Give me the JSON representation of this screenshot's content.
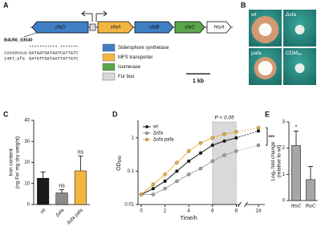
{
  "panel_a": {
    "label": "A",
    "genes": [
      {
        "name": "sfaD",
        "color": "#3f7fc4"
      },
      {
        "name": "sfaA",
        "color": "#f2b640"
      },
      {
        "name": "sfaB",
        "color": "#3f7fc4"
      },
      {
        "name": "sfaC",
        "color": "#5aa64a"
      },
      {
        "name": "htsA",
        "color": "#ffffff"
      }
    ],
    "fur_box_color": "#d9d9d9",
    "locus": "B4U56_03540",
    "alignment": {
      "stars": "*********** *******",
      "rows": [
        [
          "consensus",
          "GATAATGATAATCATTATC"
        ],
        [
          "1457_sfa",
          "GATATTGATAATTATTATC"
        ]
      ]
    },
    "legend": [
      {
        "name": "Siderophore synthetase",
        "color": "#3f7fc4"
      },
      {
        "name": "MFS transporter",
        "color": "#f2b640"
      },
      {
        "name": "Isomerase",
        "color": "#5aa64a"
      },
      {
        "name": "Fur box",
        "color": "#d9d9d9"
      }
    ],
    "scale": "1 kb"
  },
  "panel_b": {
    "label": "B",
    "plates": [
      {
        "text": "wt"
      },
      {
        "text": "Δsfa"
      },
      {
        "text": "pafa"
      },
      {
        "text": "CDM",
        "sub": "Fe"
      }
    ]
  },
  "chart_data": [
    {
      "type": "bar",
      "label": "C",
      "y_label": [
        "Iron content",
        "(ng Fe/ mg dry weight)"
      ],
      "categories": [
        "wt",
        "Δsfa",
        "Δsfa pafa"
      ],
      "values": [
        12.5,
        5.5,
        16
      ],
      "errors": [
        3,
        1.5,
        7
      ],
      "colors": [
        "#1a1a1a",
        "#8c8c8c",
        "#f2b640"
      ],
      "annotations": [
        null,
        "ns",
        "ns"
      ],
      "ylim": [
        0,
        40
      ],
      "yticks": [
        0,
        10,
        20,
        30,
        40
      ]
    },
    {
      "type": "line",
      "label": "D",
      "y_label": {
        "text": "OD",
        "sub": "540"
      },
      "x_label": "Time/h",
      "x": [
        0,
        1,
        2,
        3,
        4,
        5,
        6,
        7,
        8,
        24
      ],
      "series": [
        {
          "name": "wt",
          "color": "#1a1a1a",
          "values": [
            0.02,
            0.03,
            0.05,
            0.1,
            0.2,
            0.35,
            0.6,
            0.8,
            1.0,
            1.6
          ]
        },
        {
          "name": "Δsfa",
          "color": "#a6a6a6",
          "values": [
            0.02,
            0.02,
            0.03,
            0.05,
            0.08,
            0.12,
            0.2,
            0.3,
            0.4,
            0.6
          ]
        },
        {
          "name": "Δsfa pafa",
          "color": "#f2b640",
          "values": [
            0.02,
            0.04,
            0.08,
            0.18,
            0.4,
            0.7,
            1.0,
            1.3,
            1.5,
            2.0
          ]
        }
      ],
      "log_y": true,
      "ylim": [
        0.01,
        3
      ],
      "yticks": [
        0.01,
        0.1,
        1
      ],
      "xlim": [
        0,
        24
      ],
      "xticks": [
        0,
        2,
        4,
        6,
        8,
        24
      ],
      "axis_break": true,
      "shade": [
        6,
        8
      ],
      "shade_label": "P < 0.05",
      "end_label": "***",
      "legend": "upper left"
    },
    {
      "type": "bar",
      "label": "E",
      "y_label": [
        "Log",
        "2",
        " fold change"
      ],
      "y_label2": "(relative to wt)",
      "categories": [
        "htsC",
        "fhuC"
      ],
      "values": [
        2.1,
        0.8
      ],
      "errors": [
        0.55,
        0.5
      ],
      "color": "#a6a6a6",
      "annotations": [
        "*",
        null
      ],
      "ylim": [
        0,
        3
      ],
      "yticks": [
        0,
        1,
        2,
        3
      ]
    }
  ]
}
